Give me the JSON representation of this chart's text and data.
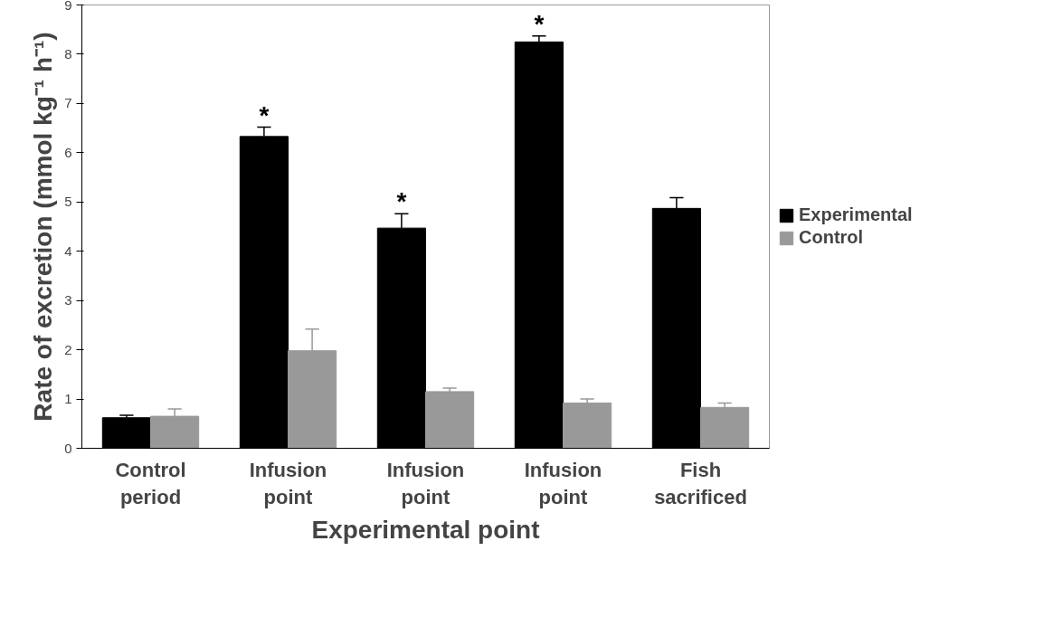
{
  "chart_data": {
    "type": "bar",
    "xlabel": "Experimental point",
    "ylabel": "Rate of excretion (mmol kg⁻¹ h⁻¹)",
    "categories": [
      "Control\nperiod",
      "Infusion\npoint",
      "Infusion\npoint",
      "Infusion\npoint",
      "Fish\nsacrificed"
    ],
    "series": [
      {
        "name": "Experimental",
        "color": "#000000",
        "values": [
          0.62,
          6.33,
          4.47,
          8.25,
          4.87
        ],
        "errors": [
          [
            0.62,
            0.67
          ],
          [
            6.33,
            6.52
          ],
          [
            4.47,
            4.76
          ],
          [
            8.25,
            8.37
          ],
          [
            4.87,
            5.09
          ]
        ],
        "value_labels": [
          null,
          "*",
          "*",
          "*",
          null
        ]
      },
      {
        "name": "Control",
        "color": "#999999",
        "values": [
          0.65,
          1.98,
          1.15,
          0.92,
          0.83
        ],
        "errors": [
          [
            0.65,
            0.8
          ],
          [
            1.98,
            2.42
          ],
          [
            1.15,
            1.22
          ],
          [
            0.92,
            1.0
          ],
          [
            0.83,
            0.92
          ]
        ]
      }
    ],
    "ylim": [
      0,
      9
    ],
    "yticks": [
      0,
      1,
      2,
      3,
      4,
      5,
      6,
      7,
      8,
      9
    ],
    "legend": "right",
    "grid": false
  }
}
